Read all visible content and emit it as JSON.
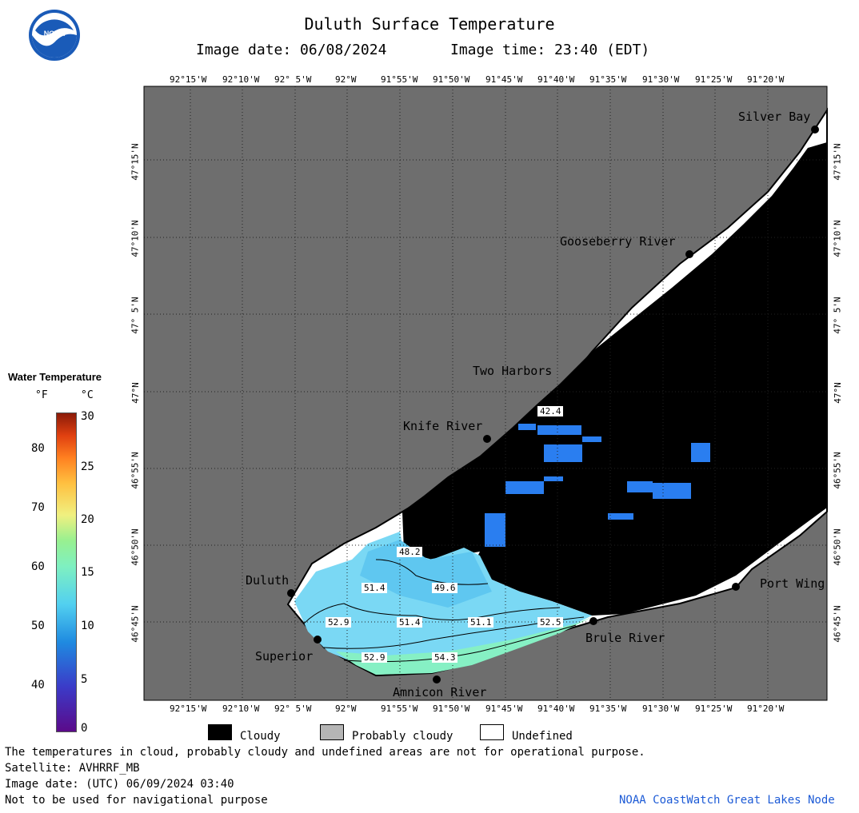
{
  "header": {
    "title": "Duluth Surface Temperature",
    "image_date": "Image date: 06/08/2024",
    "image_time": "Image time: 23:40 (EDT)"
  },
  "logo": {
    "text": "NOAA",
    "colors": [
      "#1a5bb8",
      "#7ec8f0",
      "#ffffff"
    ]
  },
  "map": {
    "top_lon_labels": [
      "92°15'W",
      "92°10'W",
      "92° 5'W",
      "92°W",
      "91°55'W",
      "91°50'W",
      "91°45'W",
      "91°40'W",
      "91°35'W",
      "91°30'W",
      "91°25'W",
      "91°20'W"
    ],
    "bottom_lon_labels": [
      "92°15'W",
      "92°10'W",
      "92° 5'W",
      "92°W",
      "91°55'W",
      "91°50'W",
      "91°45'W",
      "91°40'W",
      "91°35'W",
      "91°30'W",
      "91°25'W",
      "91°20'W"
    ],
    "left_lat_labels": [
      "47°15'N",
      "47°10'N",
      "47° 5'N",
      "47°N",
      "46°55'N",
      "46°50'N",
      "46°45'N"
    ],
    "right_lat_labels": [
      "47°15'N",
      "47°10'N",
      "47° 5'N",
      "47°N",
      "46°55'N",
      "46°50'N",
      "46°45'N"
    ],
    "places": [
      "Silver Bay",
      "Gooseberry River",
      "Two Harbors",
      "Knife River",
      "Duluth",
      "Superior",
      "Amnicon River",
      "Brule River",
      "Port Wing"
    ],
    "temperature_labels": [
      "42.4",
      "48.2",
      "51.4",
      "49.6",
      "52.9",
      "51.4",
      "51.1",
      "52.5",
      "52.9",
      "54.3"
    ],
    "colors": {
      "land": "#6e6e6e",
      "cloud": "#000000",
      "undefined": "#ffffff",
      "grid": "#1a1a1a"
    }
  },
  "legend": {
    "title": "Water Temperature",
    "unit_f": "°F",
    "unit_c": "°C",
    "fahrenheit_ticks": [
      "80",
      "70",
      "60",
      "50",
      "40"
    ],
    "celsius_ticks": [
      "30",
      "25",
      "20",
      "15",
      "10",
      "5",
      "0"
    ],
    "scale_c": [
      0,
      30
    ],
    "colors": [
      "#5b0a8a",
      "#3b3bc8",
      "#1f8ae0",
      "#52d0f0",
      "#7ff0c0",
      "#98f090",
      "#f0f080",
      "#ffc040",
      "#ff8020",
      "#e04010",
      "#8a1a08"
    ]
  },
  "key": {
    "cloudy": "Cloudy",
    "probably_cloudy": "Probably cloudy",
    "undefined": "Undefined",
    "probably_cloudy_color": "#b5b5b5"
  },
  "footer": {
    "line1": "The temperatures in cloud, probably cloudy and undefined areas are not for operational purpose.",
    "line2": "Satellite: AVHRRF_MB",
    "line3": "Image date: (UTC) 06/09/2024  03:40",
    "line4": "Not to be used for navigational purpose",
    "credit": "NOAA CoastWatch Great Lakes Node"
  }
}
